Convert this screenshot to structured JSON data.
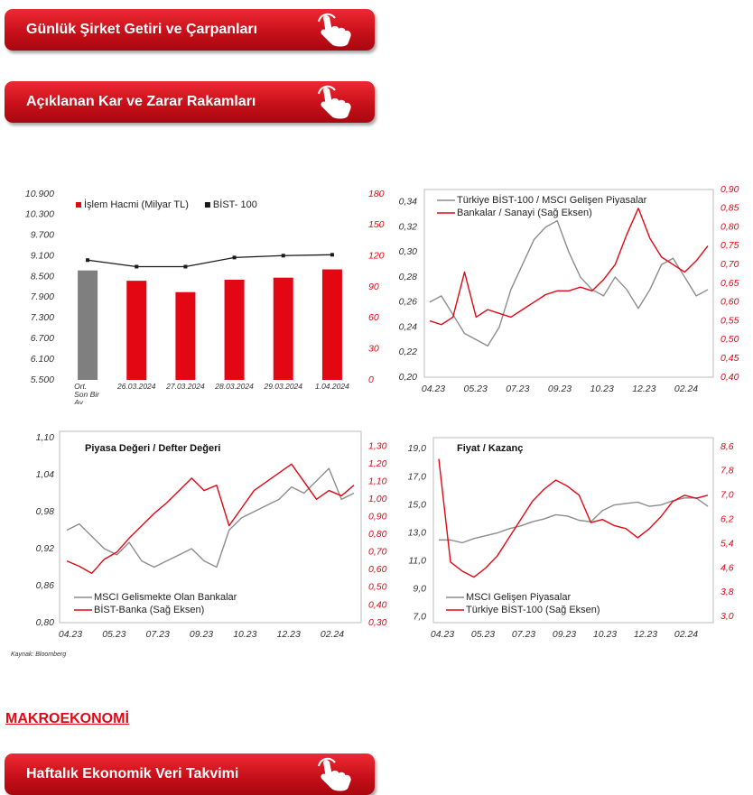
{
  "buttons": [
    "Günlük Şirket Getiri ve Çarpanları",
    "Açıklanan Kar ve Zarar Rakamları"
  ],
  "charts": [
    {
      "type": "bar_line",
      "categories": [
        "Ort. Son Bir Ay",
        "26.03.2024",
        "27.03.2024",
        "28.03.2024",
        "29.03.2024",
        "1.04.2024"
      ],
      "series": [
        {
          "name": "İşlem Hacmi (Milyar TL)",
          "color": "#e30613",
          "colors": [
            "#7f7f7f",
            "#e30613",
            "#e30613",
            "#e30613",
            "#e30613",
            "#e30613"
          ],
          "axis": "y2",
          "values": [
            106,
            96,
            85,
            97,
            99,
            107
          ]
        },
        {
          "name": "BİST- 100",
          "color": "#1a1a1a",
          "axis": "y",
          "values": [
            8980,
            8790,
            8790,
            9055,
            9110,
            9135
          ]
        }
      ],
      "ylim": [
        5500,
        10900
      ],
      "yticks": [
        {
          "value": 10900,
          "label": "10.900"
        },
        {
          "value": 10300,
          "label": "10.300"
        },
        {
          "value": 9700,
          "label": "9.700"
        },
        {
          "value": 9100,
          "label": "9.100"
        },
        {
          "value": 8500,
          "label": "8.500"
        },
        {
          "value": 7900,
          "label": "7.900"
        },
        {
          "value": 7300,
          "label": "7.300"
        },
        {
          "value": 6700,
          "label": "6.700"
        },
        {
          "value": 6100,
          "label": "6.100"
        },
        {
          "value": 5500,
          "label": "5.500"
        }
      ],
      "y2lim": [
        0,
        180
      ],
      "y2ticks": [
        0,
        30,
        60,
        90,
        120,
        150,
        180
      ],
      "legend": "upper left"
    },
    {
      "type": "line",
      "x_labels": [
        "04.23",
        "05.23",
        "07.23",
        "09.23",
        "10.23",
        "12.23",
        "02.24"
      ],
      "series": [
        {
          "name": "Türkiye BİST-100 / MSCI Gelişen Piyasalar",
          "color": "#8c8c8c",
          "axis": "y",
          "values": [
            0.26,
            0.265,
            0.25,
            0.235,
            0.23,
            0.225,
            0.24,
            0.27,
            0.29,
            0.31,
            0.32,
            0.325,
            0.3,
            0.28,
            0.27,
            0.265,
            0.28,
            0.27,
            0.255,
            0.27,
            0.29,
            0.295,
            0.28,
            0.265,
            0.27
          ]
        },
        {
          "name": "Bankalar / Sanayi (Sağ Eksen)",
          "color": "#e30613",
          "axis": "y2",
          "values": [
            0.55,
            0.54,
            0.56,
            0.68,
            0.56,
            0.58,
            0.57,
            0.56,
            0.58,
            0.6,
            0.62,
            0.63,
            0.63,
            0.64,
            0.63,
            0.66,
            0.7,
            0.78,
            0.85,
            0.77,
            0.72,
            0.7,
            0.68,
            0.71,
            0.75
          ]
        }
      ],
      "ylim": [
        0.2,
        0.35
      ],
      "yticks": [
        {
          "value": 0.2,
          "label": "0,20"
        },
        {
          "value": 0.22,
          "label": "0,22"
        },
        {
          "value": 0.24,
          "label": "0,24"
        },
        {
          "value": 0.26,
          "label": "0,26"
        },
        {
          "value": 0.28,
          "label": "0,28"
        },
        {
          "value": 0.3,
          "label": "0,30"
        },
        {
          "value": 0.32,
          "label": "0,32"
        },
        {
          "value": 0.34,
          "label": "0,34"
        }
      ],
      "y2lim": [
        0.4,
        0.9
      ],
      "y2ticks": [
        {
          "value": 0.4,
          "label": "0,40"
        },
        {
          "value": 0.45,
          "label": "0,45"
        },
        {
          "value": 0.5,
          "label": "0,50"
        },
        {
          "value": 0.55,
          "label": "0,55"
        },
        {
          "value": 0.6,
          "label": "0,60"
        },
        {
          "value": 0.65,
          "label": "0,65"
        },
        {
          "value": 0.7,
          "label": "0,70"
        },
        {
          "value": 0.75,
          "label": "0,75"
        },
        {
          "value": 0.8,
          "label": "0,80"
        },
        {
          "value": 0.85,
          "label": "0,85"
        },
        {
          "value": 0.9,
          "label": "0,90"
        }
      ],
      "legend": "upper left"
    },
    {
      "type": "line",
      "title": "Piyasa Değeri / Defter Değeri",
      "x_labels": [
        "04.23",
        "05.23",
        "07.23",
        "09.23",
        "10.23",
        "12.23",
        "02.24"
      ],
      "series": [
        {
          "name": "MSCI Gelismekte Olan Bankalar",
          "color": "#8c8c8c",
          "axis": "y",
          "values": [
            0.95,
            0.96,
            0.94,
            0.92,
            0.91,
            0.93,
            0.9,
            0.89,
            0.9,
            0.91,
            0.92,
            0.9,
            0.89,
            0.95,
            0.97,
            0.98,
            0.99,
            1.0,
            1.02,
            1.01,
            1.03,
            1.05,
            1.0,
            1.01
          ]
        },
        {
          "name": "BİST-Banka (Sağ Eksen)",
          "color": "#e30613",
          "axis": "y2",
          "values": [
            0.65,
            0.62,
            0.58,
            0.66,
            0.7,
            0.78,
            0.85,
            0.92,
            0.98,
            1.05,
            1.12,
            1.05,
            1.08,
            0.85,
            0.95,
            1.05,
            1.1,
            1.15,
            1.2,
            1.1,
            1.0,
            1.05,
            1.02,
            1.08
          ]
        }
      ],
      "ylim": [
        0.8,
        1.1
      ],
      "yticks": [
        {
          "value": 0.8,
          "label": "0,80"
        },
        {
          "value": 0.86,
          "label": "0,86"
        },
        {
          "value": 0.92,
          "label": "0,92"
        },
        {
          "value": 0.98,
          "label": "0,98"
        },
        {
          "value": 1.04,
          "label": "1,04"
        },
        {
          "value": 1.1,
          "label": "1,10"
        }
      ],
      "y2lim": [
        0.3,
        1.35
      ],
      "y2ticks": [
        {
          "value": 0.3,
          "label": "0,30"
        },
        {
          "value": 0.4,
          "label": "0,40"
        },
        {
          "value": 0.5,
          "label": "0,50"
        },
        {
          "value": 0.6,
          "label": "0,60"
        },
        {
          "value": 0.7,
          "label": "0,70"
        },
        {
          "value": 0.8,
          "label": "0,80"
        },
        {
          "value": 0.9,
          "label": "0,90"
        },
        {
          "value": 1.0,
          "label": "1,00"
        },
        {
          "value": 1.1,
          "label": "1,10"
        },
        {
          "value": 1.2,
          "label": "1,20"
        },
        {
          "value": 1.3,
          "label": "1,30"
        }
      ],
      "legend": "lower left"
    },
    {
      "type": "line",
      "title": "Fiyat / Kazanç",
      "x_labels": [
        "04.23",
        "05.23",
        "07.23",
        "09.23",
        "10.23",
        "12.23",
        "02.24"
      ],
      "series": [
        {
          "name": "MSCI Gelişen Piyasalar",
          "color": "#8c8c8c",
          "axis": "y",
          "values": [
            12.5,
            12.5,
            12.3,
            12.6,
            12.8,
            13.0,
            13.3,
            13.5,
            13.8,
            14.0,
            14.3,
            14.2,
            13.9,
            13.8,
            14.6,
            15.0,
            15.1,
            15.2,
            14.9,
            15.0,
            15.3,
            15.5,
            15.5,
            14.9
          ]
        },
        {
          "name": "Türkiye BİST-100 (Sağ Eksen)",
          "color": "#e30613",
          "axis": "y2",
          "values": [
            8.2,
            4.8,
            4.5,
            4.3,
            4.6,
            5.0,
            5.6,
            6.2,
            6.8,
            7.2,
            7.5,
            7.3,
            7.0,
            6.1,
            6.2,
            6.0,
            5.9,
            5.6,
            5.9,
            6.3,
            6.8,
            7.0,
            6.9,
            7.0
          ]
        }
      ],
      "ylim": [
        6.6,
        19.8
      ],
      "yticks": [
        {
          "value": 7,
          "label": "7,0"
        },
        {
          "value": 9,
          "label": "9,0"
        },
        {
          "value": 11,
          "label": "11,0"
        },
        {
          "value": 13,
          "label": "13,0"
        },
        {
          "value": 15,
          "label": "15,0"
        },
        {
          "value": 17,
          "label": "17,0"
        },
        {
          "value": 19,
          "label": "19,0"
        }
      ],
      "y2lim": [
        2.8,
        8.9
      ],
      "y2ticks": [
        {
          "value": 3.0,
          "label": "3,0"
        },
        {
          "value": 3.8,
          "label": "3,8"
        },
        {
          "value": 4.6,
          "label": "4,6"
        },
        {
          "value": 5.4,
          "label": "5,4"
        },
        {
          "value": 6.2,
          "label": "6,2"
        },
        {
          "value": 7.0,
          "label": "7,0"
        },
        {
          "value": 7.8,
          "label": "7,8"
        },
        {
          "value": 8.6,
          "label": "8,6"
        }
      ],
      "legend": "lower left"
    }
  ],
  "source": "Kaynak: Bloomberg",
  "section_heading": "MAKROEKONOMİ",
  "section_buttons": [
    "Haftalık Ekonomik Veri Takvimi"
  ]
}
